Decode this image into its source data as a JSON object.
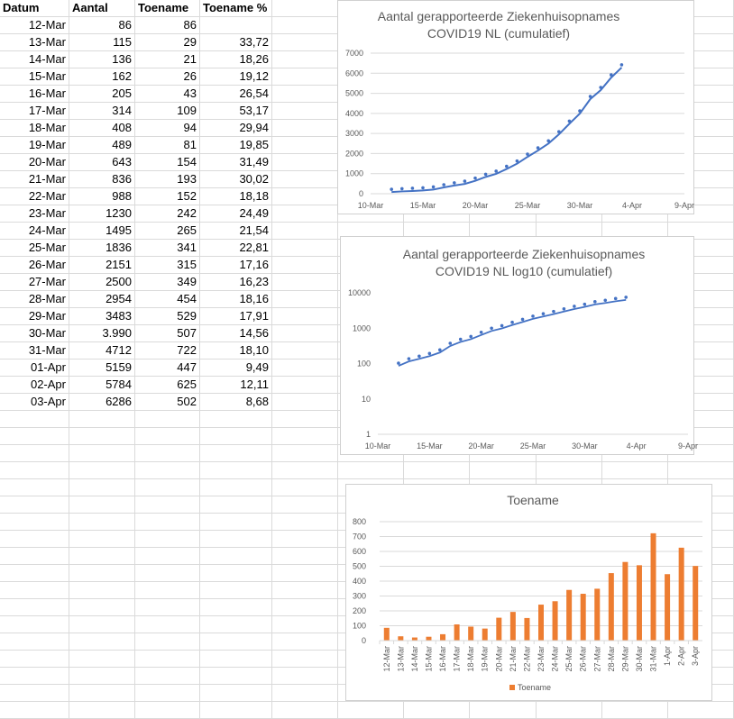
{
  "sheet": {
    "headers": [
      "Datum",
      "Aantal",
      "Toename",
      "Toename %"
    ],
    "rows": [
      [
        "12-Mar",
        "86",
        "86",
        ""
      ],
      [
        "13-Mar",
        "115",
        "29",
        "33,72"
      ],
      [
        "14-Mar",
        "136",
        "21",
        "18,26"
      ],
      [
        "15-Mar",
        "162",
        "26",
        "19,12"
      ],
      [
        "16-Mar",
        "205",
        "43",
        "26,54"
      ],
      [
        "17-Mar",
        "314",
        "109",
        "53,17"
      ],
      [
        "18-Mar",
        "408",
        "94",
        "29,94"
      ],
      [
        "19-Mar",
        "489",
        "81",
        "19,85"
      ],
      [
        "20-Mar",
        "643",
        "154",
        "31,49"
      ],
      [
        "21-Mar",
        "836",
        "193",
        "30,02"
      ],
      [
        "22-Mar",
        "988",
        "152",
        "18,18"
      ],
      [
        "23-Mar",
        "1230",
        "242",
        "24,49"
      ],
      [
        "24-Mar",
        "1495",
        "265",
        "21,54"
      ],
      [
        "25-Mar",
        "1836",
        "341",
        "22,81"
      ],
      [
        "26-Mar",
        "2151",
        "315",
        "17,16"
      ],
      [
        "27-Mar",
        "2500",
        "349",
        "16,23"
      ],
      [
        "28-Mar",
        "2954",
        "454",
        "18,16"
      ],
      [
        "29-Mar",
        "3483",
        "529",
        "17,91"
      ],
      [
        "30-Mar",
        "3.990",
        "507",
        "14,56"
      ],
      [
        "31-Mar",
        "4712",
        "722",
        "18,10"
      ],
      [
        "01-Apr",
        "5159",
        "447",
        "9,49"
      ],
      [
        "02-Apr",
        "5784",
        "625",
        "12,11"
      ],
      [
        "03-Apr",
        "6286",
        "502",
        "8,68"
      ]
    ]
  },
  "chart_data": [
    {
      "type": "line",
      "title": [
        "Aantal gerapporteerde Ziekenhuisopnames",
        "COVID19 NL (cumulatief)"
      ],
      "x": [
        "2020-03-12",
        "2020-03-13",
        "2020-03-14",
        "2020-03-15",
        "2020-03-16",
        "2020-03-17",
        "2020-03-18",
        "2020-03-19",
        "2020-03-20",
        "2020-03-21",
        "2020-03-22",
        "2020-03-23",
        "2020-03-24",
        "2020-03-25",
        "2020-03-26",
        "2020-03-27",
        "2020-03-28",
        "2020-03-29",
        "2020-03-30",
        "2020-03-31",
        "2020-04-01",
        "2020-04-02",
        "2020-04-03"
      ],
      "values": [
        86,
        115,
        136,
        162,
        205,
        314,
        408,
        489,
        643,
        836,
        988,
        1230,
        1495,
        1836,
        2151,
        2500,
        2954,
        3483,
        3990,
        4712,
        5159,
        5784,
        6286
      ],
      "xlim": [
        "2020-03-10",
        "2020-04-09"
      ],
      "xticks": [
        "10-Mar",
        "15-Mar",
        "20-Mar",
        "25-Mar",
        "30-Mar",
        "4-Apr",
        "9-Apr"
      ],
      "ylim": [
        0,
        7000
      ],
      "yticks": [
        "0",
        "1000",
        "2000",
        "3000",
        "4000",
        "5000",
        "6000",
        "7000"
      ],
      "yscale": "linear",
      "grid": true,
      "color": "#4472c4"
    },
    {
      "type": "line",
      "title": [
        "Aantal gerapporteerde  Ziekenhuisopnames",
        "COVID19 NL log10 (cumulatief)"
      ],
      "x": [
        "2020-03-12",
        "2020-03-13",
        "2020-03-14",
        "2020-03-15",
        "2020-03-16",
        "2020-03-17",
        "2020-03-18",
        "2020-03-19",
        "2020-03-20",
        "2020-03-21",
        "2020-03-22",
        "2020-03-23",
        "2020-03-24",
        "2020-03-25",
        "2020-03-26",
        "2020-03-27",
        "2020-03-28",
        "2020-03-29",
        "2020-03-30",
        "2020-03-31",
        "2020-04-01",
        "2020-04-02",
        "2020-04-03"
      ],
      "values": [
        86,
        115,
        136,
        162,
        205,
        314,
        408,
        489,
        643,
        836,
        988,
        1230,
        1495,
        1836,
        2151,
        2500,
        2954,
        3483,
        3990,
        4712,
        5159,
        5784,
        6286
      ],
      "xlim": [
        "2020-03-10",
        "2020-04-09"
      ],
      "xticks": [
        "10-Mar",
        "15-Mar",
        "20-Mar",
        "25-Mar",
        "30-Mar",
        "4-Apr",
        "9-Apr"
      ],
      "ylim": [
        1,
        10000
      ],
      "yticks": [
        "1",
        "10",
        "100",
        "1000",
        "10000"
      ],
      "yscale": "log",
      "grid": false,
      "color": "#4472c4"
    },
    {
      "type": "bar",
      "title": "Toename",
      "categories": [
        "12-Mar",
        "13-Mar",
        "14-Mar",
        "15-Mar",
        "16-Mar",
        "17-Mar",
        "18-Mar",
        "19-Mar",
        "20-Mar",
        "21-Mar",
        "22-Mar",
        "23-Mar",
        "24-Mar",
        "25-Mar",
        "26-Mar",
        "27-Mar",
        "28-Mar",
        "29-Mar",
        "30-Mar",
        "31-Mar",
        "1-Apr",
        "2-Apr",
        "3-Apr"
      ],
      "series": [
        {
          "name": "Toename",
          "values": [
            86,
            29,
            21,
            26,
            43,
            109,
            94,
            81,
            154,
            193,
            152,
            242,
            265,
            341,
            315,
            349,
            454,
            529,
            507,
            722,
            447,
            625,
            502
          ]
        }
      ],
      "ylim": [
        0,
        800
      ],
      "yticks": [
        "0",
        "100",
        "200",
        "300",
        "400",
        "500",
        "600",
        "700",
        "800"
      ],
      "grid": true,
      "legend": "bottom",
      "color": "#ed7d31"
    }
  ]
}
